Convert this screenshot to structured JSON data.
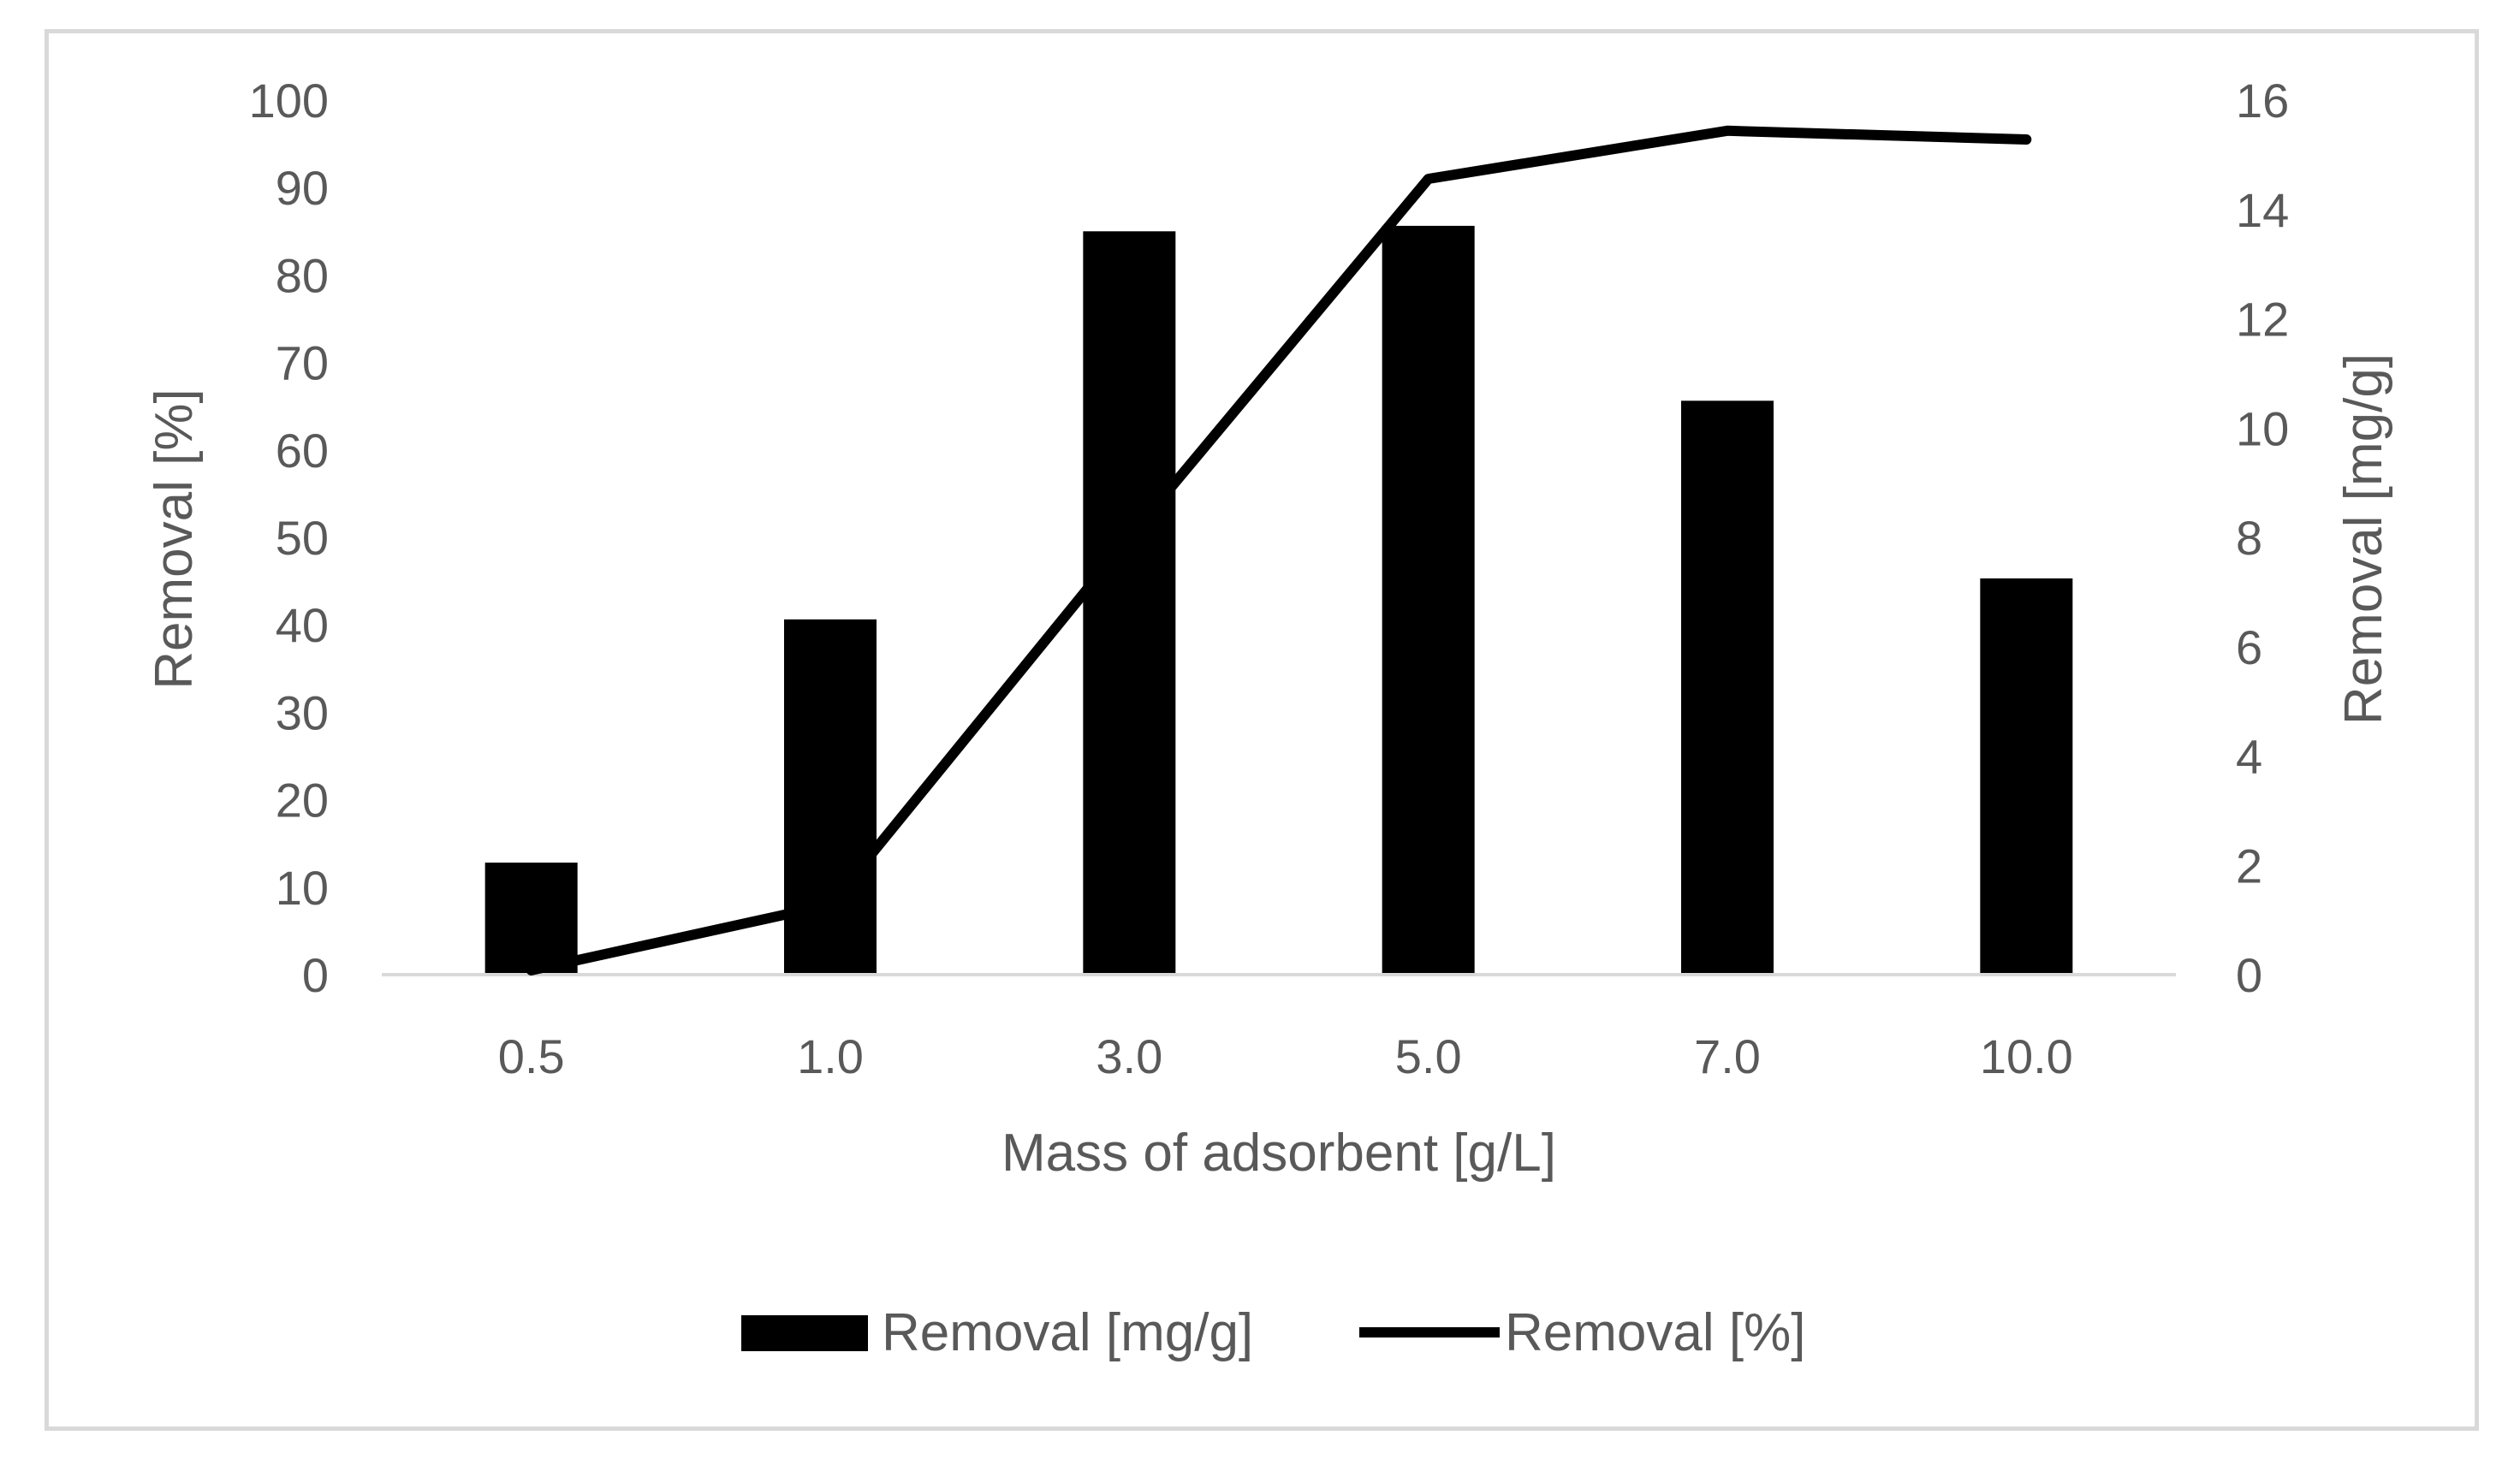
{
  "chart_data": {
    "type": "bar",
    "categories": [
      "0.5",
      "1.0",
      "3.0",
      "5.0",
      "7.0",
      "10.0"
    ],
    "series": [
      {
        "name": "Removal [mg/g]",
        "kind": "bar",
        "axis": "right",
        "values": [
          2.05,
          6.5,
          13.6,
          13.7,
          10.5,
          7.25
        ]
      },
      {
        "name": "Removal [%]",
        "kind": "line",
        "axis": "left",
        "values": [
          0.5,
          8,
          50,
          91,
          96.5,
          95.5
        ]
      }
    ],
    "title": "",
    "xlabel": "Mass of adsorbent [g/L]",
    "ylabel": "Removal [%]",
    "y2label": "Removal [mg/g]",
    "ylim": [
      0,
      100
    ],
    "y2lim": [
      0,
      16
    ],
    "yticks": [
      "0",
      "10",
      "20",
      "30",
      "40",
      "50",
      "60",
      "70",
      "80",
      "90",
      "100"
    ],
    "y2ticks": [
      "0",
      "2",
      "4",
      "6",
      "8",
      "10",
      "12",
      "14",
      "16"
    ],
    "legend": "bottom",
    "grid": false,
    "colors": {
      "bar": "#000000",
      "line": "#000000",
      "text": "#595959",
      "axis": "#d9d9d9"
    }
  }
}
